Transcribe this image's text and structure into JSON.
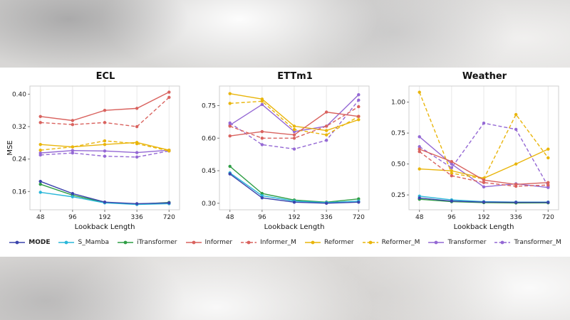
{
  "figure": {
    "xlabel": "Lookback Length",
    "ylabel": "MSE"
  },
  "legend": [
    {
      "name": "MODE",
      "color": "#3b44ac",
      "dashed": false,
      "bold": true
    },
    {
      "name": "S_Mamba",
      "color": "#29b7d9",
      "dashed": false,
      "bold": false
    },
    {
      "name": "iTransformer",
      "color": "#2f9e45",
      "dashed": false,
      "bold": false
    },
    {
      "name": "Informer",
      "color": "#d9625e",
      "dashed": false,
      "bold": false
    },
    {
      "name": "Informer_M",
      "color": "#d9625e",
      "dashed": true,
      "bold": false
    },
    {
      "name": "Reformer",
      "color": "#e9b50b",
      "dashed": false,
      "bold": false
    },
    {
      "name": "Reformer_M",
      "color": "#e9b50b",
      "dashed": true,
      "bold": false
    },
    {
      "name": "Transformer",
      "color": "#9468d4",
      "dashed": false,
      "bold": false
    },
    {
      "name": "Transformer_M",
      "color": "#9468d4",
      "dashed": true,
      "bold": false
    }
  ],
  "chart_data": [
    {
      "type": "line",
      "title": "ECL",
      "xlabel": "Lookback Length",
      "ylabel": "MSE",
      "x": [
        48,
        96,
        192,
        336,
        720
      ],
      "yticks": [
        0.16,
        0.24,
        0.32,
        0.4
      ],
      "ylim": [
        0.115,
        0.42
      ],
      "grid": "vertical",
      "legend_position": "bottom",
      "series": [
        {
          "name": "MODE",
          "values": [
            0.185,
            0.155,
            0.134,
            0.13,
            0.132
          ]
        },
        {
          "name": "S_Mamba",
          "values": [
            0.158,
            0.147,
            0.132,
            0.128,
            0.13
          ]
        },
        {
          "name": "iTransformer",
          "values": [
            0.178,
            0.151,
            0.133,
            0.129,
            0.133
          ]
        },
        {
          "name": "Informer",
          "values": [
            0.345,
            0.335,
            0.36,
            0.365,
            0.405
          ]
        },
        {
          "name": "Informer_M",
          "values": [
            0.33,
            0.325,
            0.33,
            0.32,
            0.392
          ]
        },
        {
          "name": "Reformer",
          "values": [
            0.276,
            0.27,
            0.276,
            0.281,
            0.262
          ]
        },
        {
          "name": "Reformer_M",
          "values": [
            0.262,
            0.27,
            0.285,
            0.278,
            0.26
          ]
        },
        {
          "name": "Transformer",
          "values": [
            0.255,
            0.261,
            0.26,
            0.256,
            0.262
          ]
        },
        {
          "name": "Transformer_M",
          "values": [
            0.25,
            0.255,
            0.247,
            0.245,
            0.26
          ]
        }
      ]
    },
    {
      "type": "line",
      "title": "ETTm1",
      "xlabel": "Lookback Length",
      "ylabel": "",
      "x": [
        48,
        96,
        192,
        336,
        720
      ],
      "yticks": [
        0.3,
        0.45,
        0.6,
        0.75
      ],
      "ylim": [
        0.27,
        0.84
      ],
      "grid": "vertical",
      "legend_position": "bottom",
      "series": [
        {
          "name": "MODE",
          "values": [
            0.435,
            0.325,
            0.305,
            0.3,
            0.305
          ]
        },
        {
          "name": "S_Mamba",
          "values": [
            0.44,
            0.335,
            0.31,
            0.303,
            0.31
          ]
        },
        {
          "name": "iTransformer",
          "values": [
            0.47,
            0.345,
            0.315,
            0.305,
            0.32
          ]
        },
        {
          "name": "Informer",
          "values": [
            0.61,
            0.63,
            0.615,
            0.72,
            0.7
          ]
        },
        {
          "name": "Informer_M",
          "values": [
            0.655,
            0.6,
            0.6,
            0.655,
            0.745
          ]
        },
        {
          "name": "Reformer",
          "values": [
            0.805,
            0.78,
            0.655,
            0.635,
            0.685
          ]
        },
        {
          "name": "Reformer_M",
          "values": [
            0.76,
            0.77,
            0.64,
            0.615,
            0.7
          ]
        },
        {
          "name": "Transformer",
          "values": [
            0.66,
            0.755,
            0.63,
            0.655,
            0.8
          ]
        },
        {
          "name": "Transformer_M",
          "values": [
            0.67,
            0.57,
            0.55,
            0.59,
            0.775
          ]
        }
      ]
    },
    {
      "type": "line",
      "title": "Weather",
      "xlabel": "Lookback Length",
      "ylabel": "",
      "x": [
        48,
        96,
        192,
        336,
        720
      ],
      "yticks": [
        0.25,
        0.5,
        0.75,
        1.0
      ],
      "ylim": [
        0.13,
        1.13
      ],
      "grid": "vertical",
      "legend_position": "bottom",
      "series": [
        {
          "name": "MODE",
          "values": [
            0.225,
            0.2,
            0.192,
            0.19,
            0.19
          ]
        },
        {
          "name": "S_Mamba",
          "values": [
            0.24,
            0.21,
            0.196,
            0.192,
            0.192
          ]
        },
        {
          "name": "iTransformer",
          "values": [
            0.215,
            0.196,
            0.188,
            0.185,
            0.186
          ]
        },
        {
          "name": "Informer",
          "values": [
            0.62,
            0.52,
            0.37,
            0.335,
            0.35
          ]
        },
        {
          "name": "Informer_M",
          "values": [
            0.6,
            0.405,
            0.35,
            0.32,
            0.33
          ]
        },
        {
          "name": "Reformer",
          "values": [
            0.46,
            0.445,
            0.385,
            0.5,
            0.62
          ]
        },
        {
          "name": "Reformer_M",
          "values": [
            1.08,
            0.425,
            0.38,
            0.9,
            0.55
          ]
        },
        {
          "name": "Transformer",
          "values": [
            0.72,
            0.5,
            0.315,
            0.34,
            0.31
          ]
        },
        {
          "name": "Transformer_M",
          "values": [
            0.64,
            0.47,
            0.83,
            0.78,
            0.32
          ]
        }
      ]
    }
  ]
}
